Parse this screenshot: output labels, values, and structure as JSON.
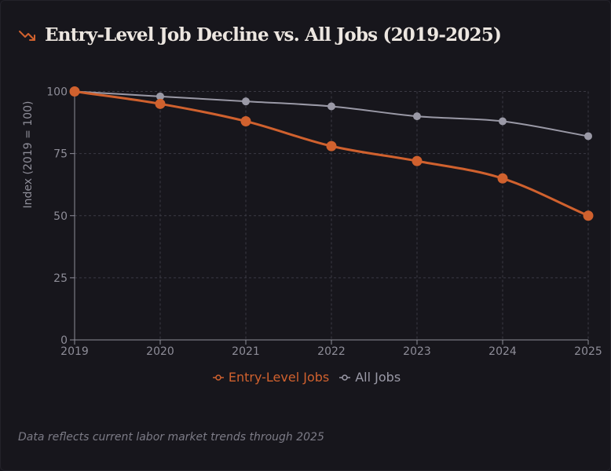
{
  "header": {
    "icon": "trending-down-icon",
    "title": "Entry-Level Job Decline vs. All Jobs (2019-2025)"
  },
  "colors": {
    "entry": "#d0612e",
    "all": "#9a99a6",
    "grid": "#3b3a44",
    "axis": "#8e8d98",
    "title": "#ece6e0"
  },
  "chart_data": {
    "type": "line",
    "title": "Entry-Level Job Decline vs. All Jobs (2019-2025)",
    "xlabel": "",
    "ylabel": "Index (2019 = 100)",
    "x": [
      "2019",
      "2020",
      "2021",
      "2022",
      "2023",
      "2024",
      "2025"
    ],
    "ylim": [
      0,
      100
    ],
    "yticks": [
      "0",
      "25",
      "50",
      "75",
      "100"
    ],
    "grid": true,
    "legend_position": "bottom-center",
    "series": [
      {
        "name": "Entry-Level Jobs",
        "values": [
          100,
          95,
          88,
          78,
          72,
          65,
          50
        ]
      },
      {
        "name": "All Jobs",
        "values": [
          100,
          98,
          96,
          94,
          90,
          88,
          82
        ]
      }
    ]
  },
  "footer": {
    "note": "Data reflects current labor market trends through 2025"
  }
}
